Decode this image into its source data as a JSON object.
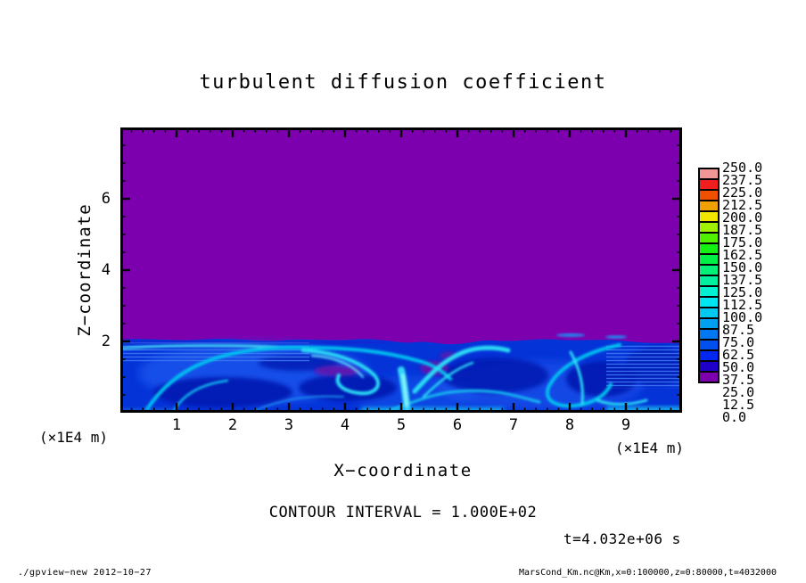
{
  "title": "turbulent diffusion coefficient",
  "plot": {
    "xaxis": {
      "label": "X−coordinate",
      "unit": "(×1E4 m)",
      "ticks": [
        "1",
        "2",
        "3",
        "4",
        "5",
        "6",
        "7",
        "8",
        "9"
      ]
    },
    "yaxis": {
      "label": "Z−coordinate",
      "unit": "(×1E4 m)",
      "ticks": [
        "2",
        "4",
        "6"
      ]
    }
  },
  "colorbar": {
    "labels_top_to_bottom": [
      "250.0",
      "237.5",
      "225.0",
      "212.5",
      "200.0",
      "187.5",
      "175.0",
      "162.5",
      "150.0",
      "137.5",
      "125.0",
      "112.5",
      "100.0",
      "87.5",
      "75.0",
      "62.5",
      "50.0",
      "37.5",
      "25.0",
      "12.5",
      "0.0"
    ],
    "colors_top_to_bottom": [
      "#F09696",
      "#F01E1E",
      "#F05000",
      "#F0A000",
      "#F0E600",
      "#A0F000",
      "#50F000",
      "#14F014",
      "#00F046",
      "#00F078",
      "#00F0A0",
      "#00F0D2",
      "#00E6F0",
      "#00C8F0",
      "#00A0F0",
      "#0078F0",
      "#0050F0",
      "#0028F0",
      "#1E00C8",
      "#7D00AF"
    ]
  },
  "annotations": {
    "contour_interval": "CONTOUR INTERVAL = 1.000E+02",
    "time": "t=4.032e+06 s"
  },
  "footer": {
    "left": "./gpview−new  2012−10−27",
    "right": "MarsCond_Km.nc@Km,x=0:100000,z=0:80000,t=4032000"
  },
  "chart_data": {
    "type": "heatmap",
    "title": "turbulent diffusion coefficient",
    "xlabel": "X−coordinate (×1E4 m)",
    "ylabel": "Z−coordinate (×1E4 m)",
    "x_range_m": [
      0,
      100000
    ],
    "z_range_m": [
      0,
      80000
    ],
    "x_tick_values_x1e4_m": [
      1,
      2,
      3,
      4,
      5,
      6,
      7,
      8,
      9
    ],
    "z_tick_values_x1e4_m": [
      2,
      4,
      6
    ],
    "time_s": 4032000,
    "time_label": "t=4.032e+06 s",
    "contour_interval": "1.000E+02",
    "levels": [
      0.0,
      12.5,
      25.0,
      37.5,
      50.0,
      62.5,
      75.0,
      87.5,
      100.0,
      112.5,
      125.0,
      137.5,
      150.0,
      162.5,
      175.0,
      187.5,
      200.0,
      212.5,
      225.0,
      237.5,
      250.0
    ],
    "palette_bottom_to_top": [
      "#7D00AF",
      "#1E00C8",
      "#0028F0",
      "#0050F0",
      "#0078F0",
      "#00A0F0",
      "#00C8F0",
      "#00E6F0",
      "#00F0D2",
      "#00F0A0",
      "#00F078",
      "#00F046",
      "#14F014",
      "#50F000",
      "#A0F000",
      "#F0E600",
      "#F0A000",
      "#F05000",
      "#F01E1E",
      "#F09696"
    ],
    "field_summary": {
      "upper_region": {
        "z_range_x1e4_m": [
          2,
          8
        ],
        "value_range": [
          0,
          12.5
        ],
        "appearance": "uniform purple (lowest contour bin)"
      },
      "lower_region": {
        "z_range_x1e4_m": [
          0,
          2
        ],
        "value_range": [
          12.5,
          100
        ],
        "appearance": "turbulent boundary layer: blue background (~25-50) with dark-blue eddy cores (~12.5-25), cyan swirl filaments and plumes (~62.5-100), fine horizontal striping near x=0-2 and x=9-10, sharp interface at z≈2"
      }
    }
  }
}
